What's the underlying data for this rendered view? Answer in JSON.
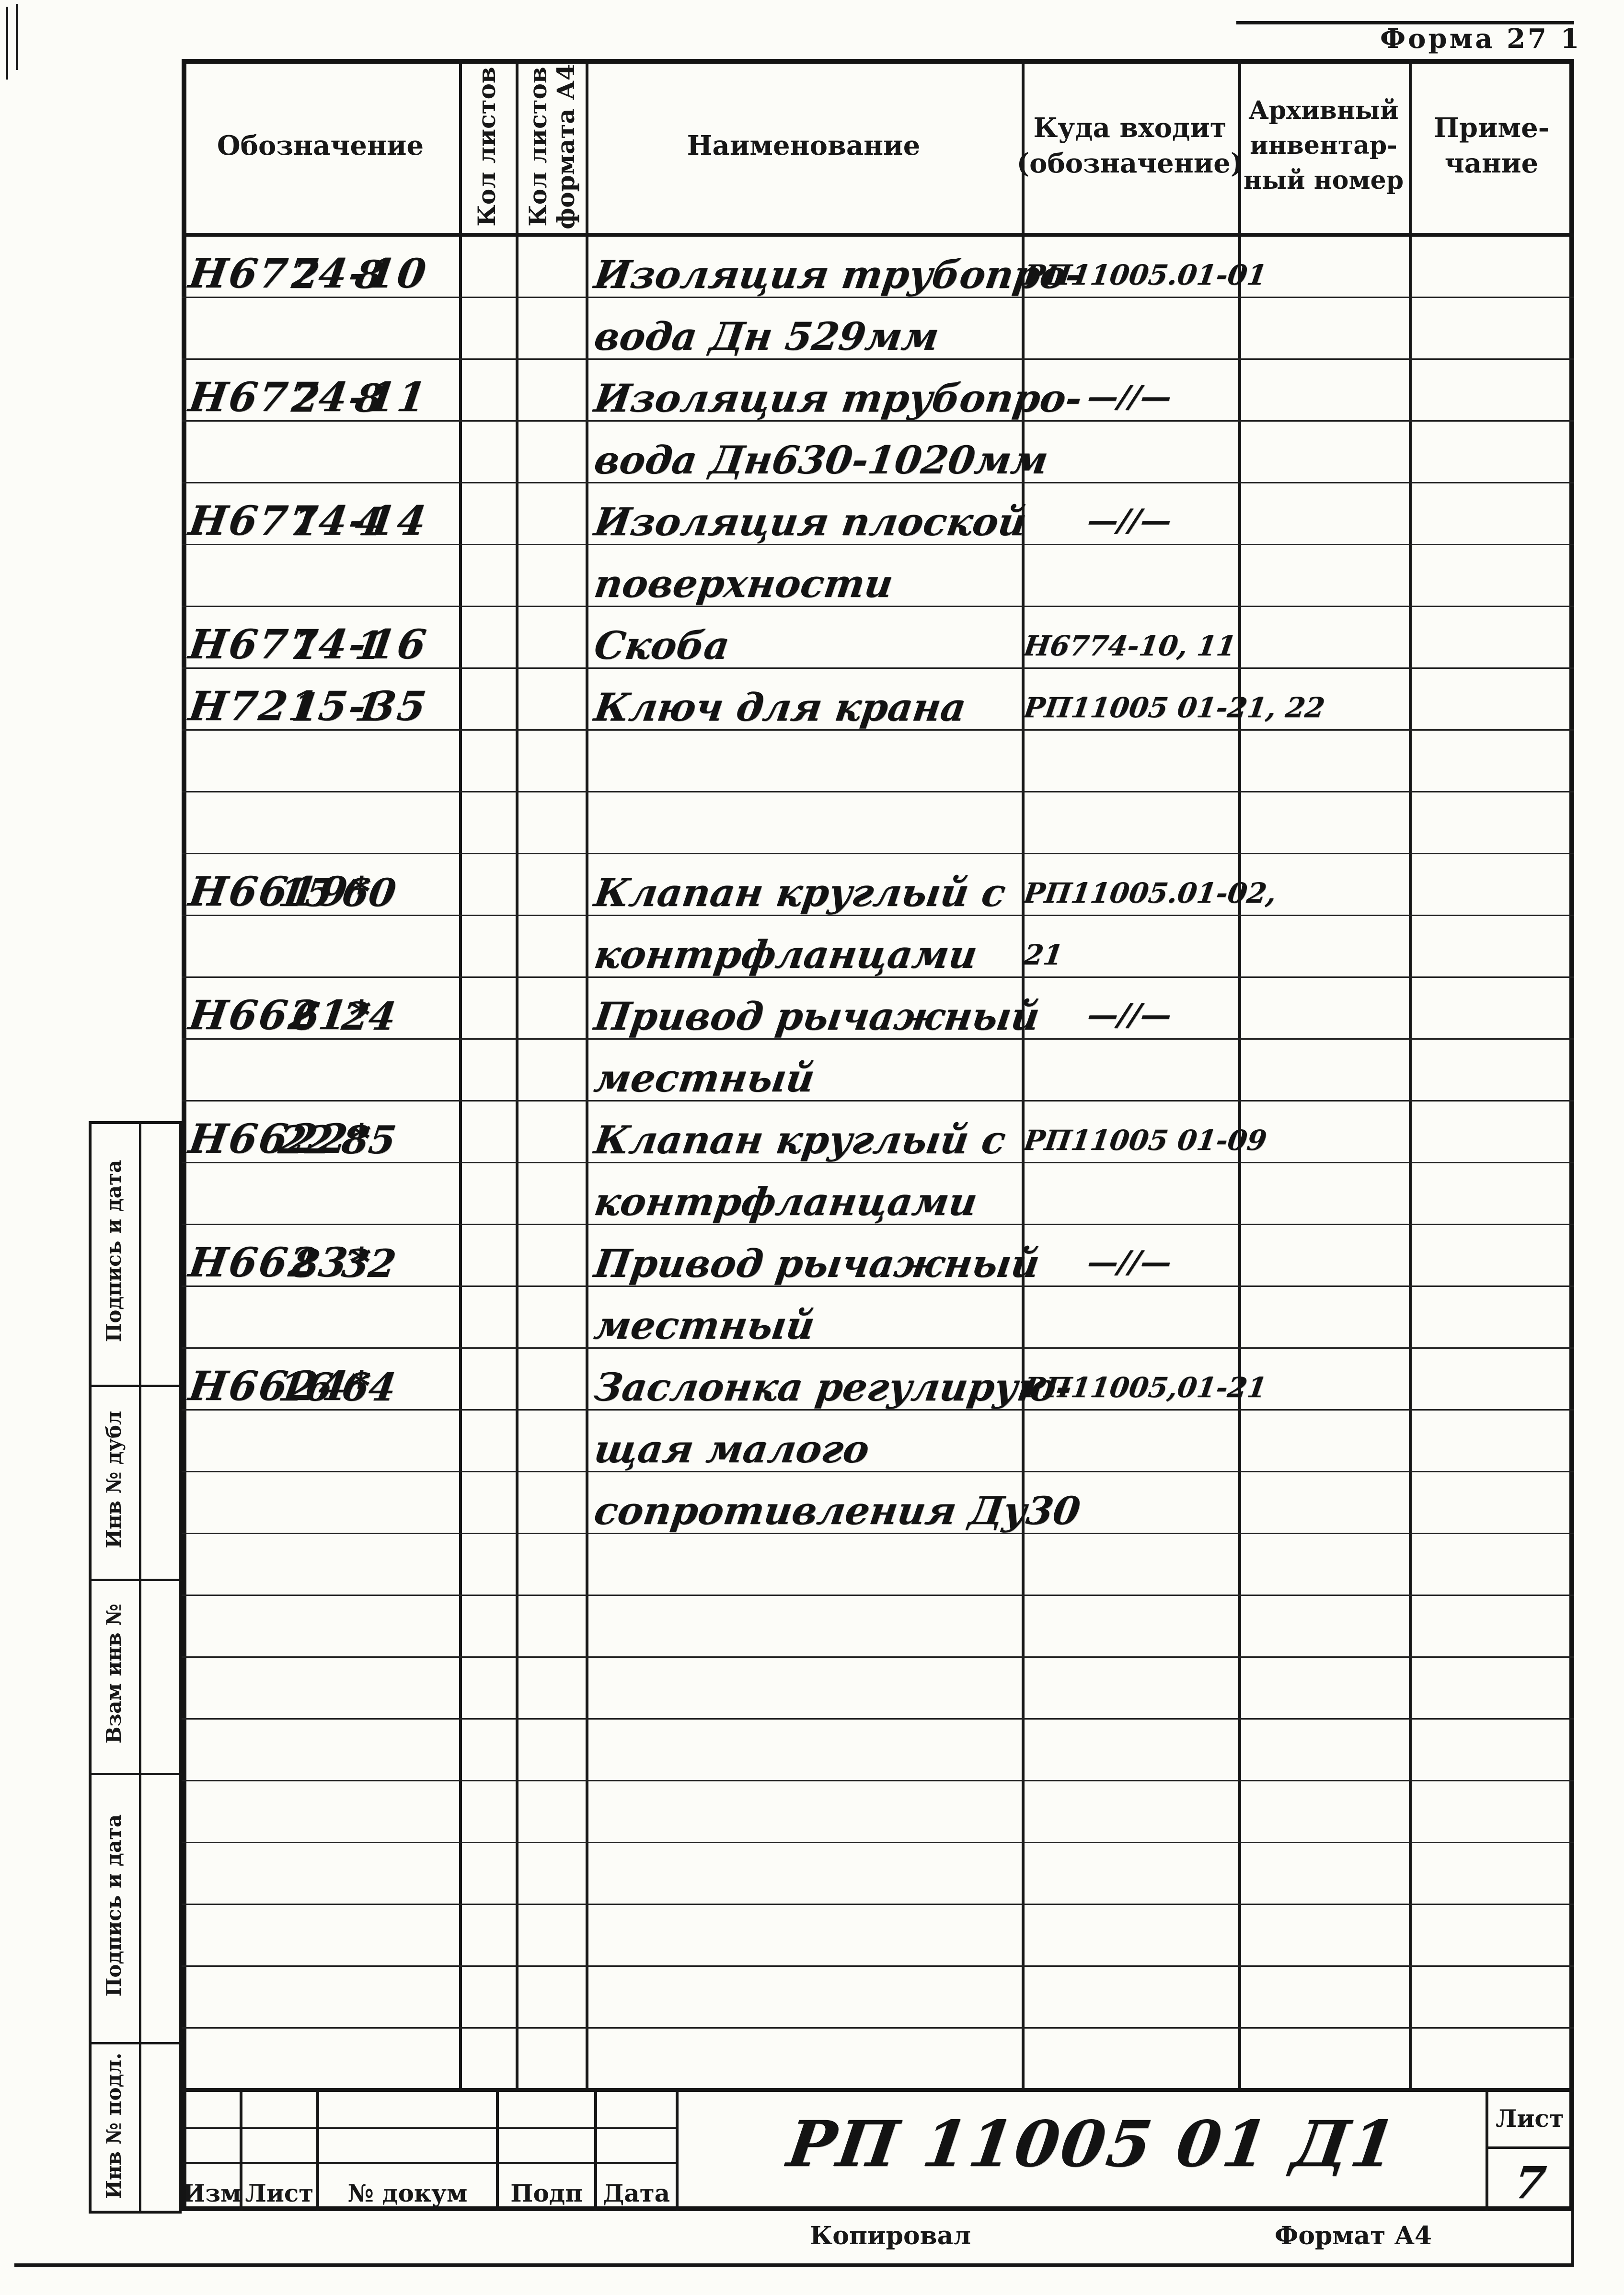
{
  "form_label": "Форма 27 1",
  "table": {
    "header": {
      "designation": "Обозначение",
      "sheet_count": "Кол листов",
      "sheet_count_a4": "Кол листов\nформата А4",
      "name": "Наименование",
      "belongs_to": "Куда входит\n(обозначение)",
      "archive_number": "Архивный\nинвентар-\nный номер",
      "note": "Приме-\nчание"
    },
    "rows": [
      {
        "designation": "Н6774-10",
        "sheets": "2",
        "sheets_a4": "8",
        "name": "Изоляция трубопро-",
        "belongs_to": "РП11005.01-01"
      },
      {
        "designation": "",
        "sheets": "",
        "sheets_a4": "",
        "name": "вода Дн 529мм",
        "belongs_to": ""
      },
      {
        "designation": "Н6774-11",
        "sheets": "2",
        "sheets_a4": "8",
        "name": "Изоляция трубопро-",
        "belongs_to": "—//—"
      },
      {
        "designation": "",
        "sheets": "",
        "sheets_a4": "",
        "name": "вода Дн630-1020мм",
        "belongs_to": ""
      },
      {
        "designation": "Н6774-14",
        "sheets": "1",
        "sheets_a4": "4",
        "name": "Изоляция плоской",
        "belongs_to": "—//—"
      },
      {
        "designation": "",
        "sheets": "",
        "sheets_a4": "",
        "name": "поверхности",
        "belongs_to": ""
      },
      {
        "designation": "Н6774-16",
        "sheets": "1",
        "sheets_a4": "1",
        "name": "Скоба",
        "belongs_to": "Н6774-10, 11"
      },
      {
        "designation": "Н7215-35",
        "sheets": "1",
        "sheets_a4": "1",
        "name": "Ключ для крана",
        "belongs_to": "РП11005 01-21, 22"
      },
      {
        "designation": "",
        "sheets": "",
        "sheets_a4": "",
        "name": "",
        "belongs_to": ""
      },
      {
        "designation": "",
        "sheets": "",
        "sheets_a4": "",
        "name": "",
        "belongs_to": ""
      },
      {
        "designation": "Н6619*",
        "sheets": "15",
        "sheets_a4": "60",
        "name": "Клапан круглый с",
        "belongs_to": "РП11005.01-02,"
      },
      {
        "designation": "",
        "sheets": "",
        "sheets_a4": "",
        "name": "контрфланцами",
        "belongs_to": "21"
      },
      {
        "designation": "Н6621*",
        "sheets": "6",
        "sheets_a4": "24",
        "name": "Привод рычажный",
        "belongs_to": "—//—"
      },
      {
        "designation": "",
        "sheets": "",
        "sheets_a4": "",
        "name": "местный",
        "belongs_to": ""
      },
      {
        "designation": "Н6622*",
        "sheets": "22",
        "sheets_a4": "85",
        "name": "Клапан круглый с",
        "belongs_to": "РП11005 01-09"
      },
      {
        "designation": "",
        "sheets": "",
        "sheets_a4": "",
        "name": "контрфланцами",
        "belongs_to": ""
      },
      {
        "designation": "Н6623*",
        "sheets": "8",
        "sheets_a4": "32",
        "name": "Привод рычажный",
        "belongs_to": "—//—"
      },
      {
        "designation": "",
        "sheets": "",
        "sheets_a4": "",
        "name": "местный",
        "belongs_to": ""
      },
      {
        "designation": "Н6624*",
        "sheets": "16",
        "sheets_a4": "64",
        "name": "Заслонка регулирую-",
        "belongs_to": "РП11005,01-21"
      },
      {
        "designation": "",
        "sheets": "",
        "sheets_a4": "",
        "name": "щая малого",
        "belongs_to": ""
      },
      {
        "designation": "",
        "sheets": "",
        "sheets_a4": "",
        "name": "сопротивления Ду30",
        "belongs_to": ""
      },
      {
        "designation": "",
        "sheets": "",
        "sheets_a4": "",
        "name": "",
        "belongs_to": ""
      },
      {
        "designation": "",
        "sheets": "",
        "sheets_a4": "",
        "name": "",
        "belongs_to": ""
      },
      {
        "designation": "",
        "sheets": "",
        "sheets_a4": "",
        "name": "",
        "belongs_to": ""
      },
      {
        "designation": "",
        "sheets": "",
        "sheets_a4": "",
        "name": "",
        "belongs_to": ""
      },
      {
        "designation": "",
        "sheets": "",
        "sheets_a4": "",
        "name": "",
        "belongs_to": ""
      },
      {
        "designation": "",
        "sheets": "",
        "sheets_a4": "",
        "name": "",
        "belongs_to": ""
      },
      {
        "designation": "",
        "sheets": "",
        "sheets_a4": "",
        "name": "",
        "belongs_to": ""
      },
      {
        "designation": "",
        "sheets": "",
        "sheets_a4": "",
        "name": "",
        "belongs_to": ""
      },
      {
        "designation": "",
        "sheets": "",
        "sheets_a4": "",
        "name": "",
        "belongs_to": ""
      }
    ]
  },
  "sidebar": {
    "boxes": [
      "Подпись и дата",
      "Инв № дубл",
      "Взам инв №",
      "Подпись и дата",
      "Инв № подл."
    ]
  },
  "title_block": {
    "revision_labels": [
      "Изм",
      "Лист",
      "№ докум",
      "Подп",
      "Дата"
    ],
    "document_number": "РП 11005 01 Д1",
    "sheet_label": "Лист",
    "sheet_number": "7",
    "copied_by_label": "Копировал",
    "format_label": "Формат А4"
  }
}
